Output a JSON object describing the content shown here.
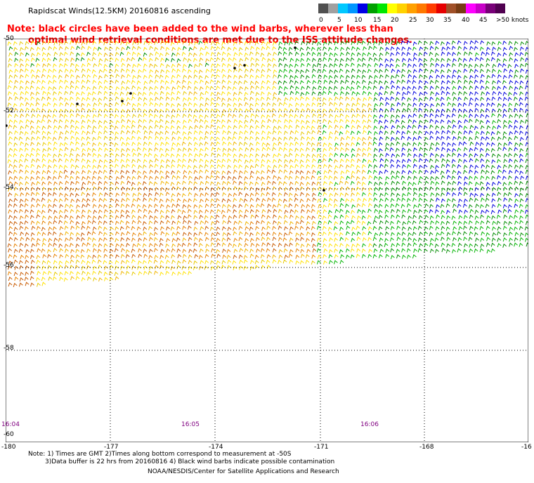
{
  "title": "Rapidscat Winds(12.5KM) 20160816 ascending",
  "note": {
    "line1": "Note: black circles have been added to the wind barbs, wherever less than",
    "line2": "optimal wind retrieval conditions are met due to the ISS attitude changes."
  },
  "scale": {
    "labels": [
      "0",
      "5",
      "10",
      "15",
      "20",
      "25",
      "30",
      "35",
      "40",
      "45",
      ">50 knots"
    ],
    "colors": [
      "#505050",
      "#a0a0a0",
      "#00c8ff",
      "#0096ff",
      "#0000e6",
      "#00a000",
      "#00e600",
      "#ffff00",
      "#ffd200",
      "#ffa000",
      "#ff7800",
      "#ff3c00",
      "#e60000",
      "#a05028",
      "#783c14",
      "#ff00ff",
      "#c800c8",
      "#780078",
      "#500050"
    ]
  },
  "map": {
    "lat_labels": [
      "-50",
      "-52",
      "-54",
      "-56",
      "-58",
      "-60"
    ],
    "lon_labels": [
      "-180",
      "-177",
      "-174",
      "-171",
      "-168",
      "-16"
    ],
    "time_labels": [
      "16:04",
      "16:05",
      "16:06"
    ],
    "barb_colors": {
      "dark_yellow": "#e6c800",
      "yellow": "#ffe100",
      "gold": "#f0b400",
      "orange": "#e68200",
      "dark_orange": "#c85a00",
      "green": "#00b400",
      "dark_green": "#008c00",
      "blue": "#0000dc",
      "black": "#000000",
      "red": "#ff0000"
    }
  },
  "footnote": {
    "line1": "Note: 1) Times are GMT 2)Times along bottom correspond to measurement at -50S",
    "line2": "3)Data buffer is 22 hrs from 20160816 4) Black wind barbs indicate possible contamination"
  },
  "credit": "NOAA/NESDIS/Center for Satellite Applications and Research"
}
